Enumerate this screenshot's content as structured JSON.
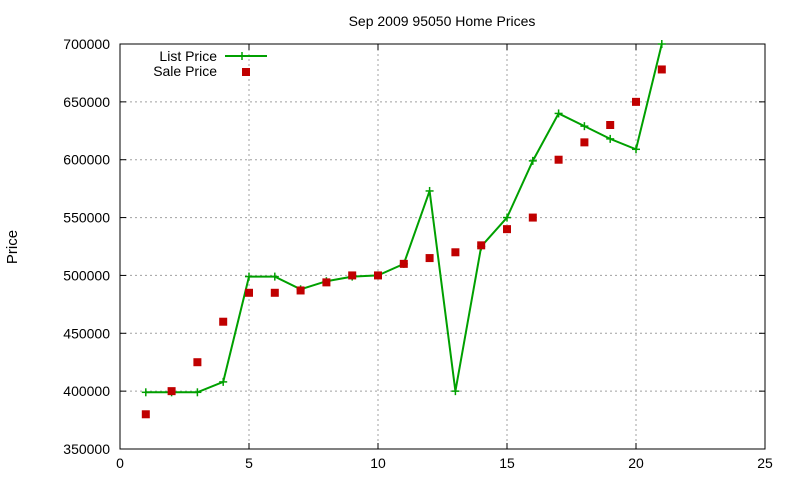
{
  "chart_data": {
    "type": "line",
    "title": "Sep 2009 95050 Home Prices",
    "xlabel": "",
    "ylabel": "Price",
    "xlim": [
      0,
      25
    ],
    "ylim": [
      350000,
      700000
    ],
    "x_ticks": [
      0,
      5,
      10,
      15,
      20,
      25
    ],
    "y_ticks": [
      350000,
      400000,
      450000,
      500000,
      550000,
      600000,
      650000,
      700000
    ],
    "grid": true,
    "legend_position": "top-left",
    "series": [
      {
        "name": "List Price",
        "style": "line+cross",
        "color": "#00a000",
        "x": [
          1,
          2,
          3,
          4,
          5,
          6,
          7,
          8,
          9,
          10,
          11,
          12,
          13,
          14,
          15,
          16,
          17,
          18,
          19,
          20,
          21
        ],
        "values": [
          399000,
          399000,
          399000,
          408000,
          499000,
          499000,
          488000,
          495000,
          499000,
          500000,
          510000,
          573000,
          400000,
          525000,
          550000,
          599000,
          640000,
          629000,
          618000,
          609000,
          700000
        ]
      },
      {
        "name": "Sale Price",
        "style": "square",
        "color": "#c00000",
        "x": [
          1,
          2,
          3,
          4,
          5,
          6,
          7,
          8,
          9,
          10,
          11,
          12,
          13,
          14,
          15,
          16,
          17,
          18,
          19,
          20,
          21
        ],
        "values": [
          380000,
          400000,
          425000,
          460000,
          485000,
          485000,
          487000,
          494000,
          500000,
          500000,
          510000,
          515000,
          520000,
          526000,
          540000,
          550000,
          600000,
          615000,
          630000,
          650000,
          678000
        ]
      }
    ]
  }
}
